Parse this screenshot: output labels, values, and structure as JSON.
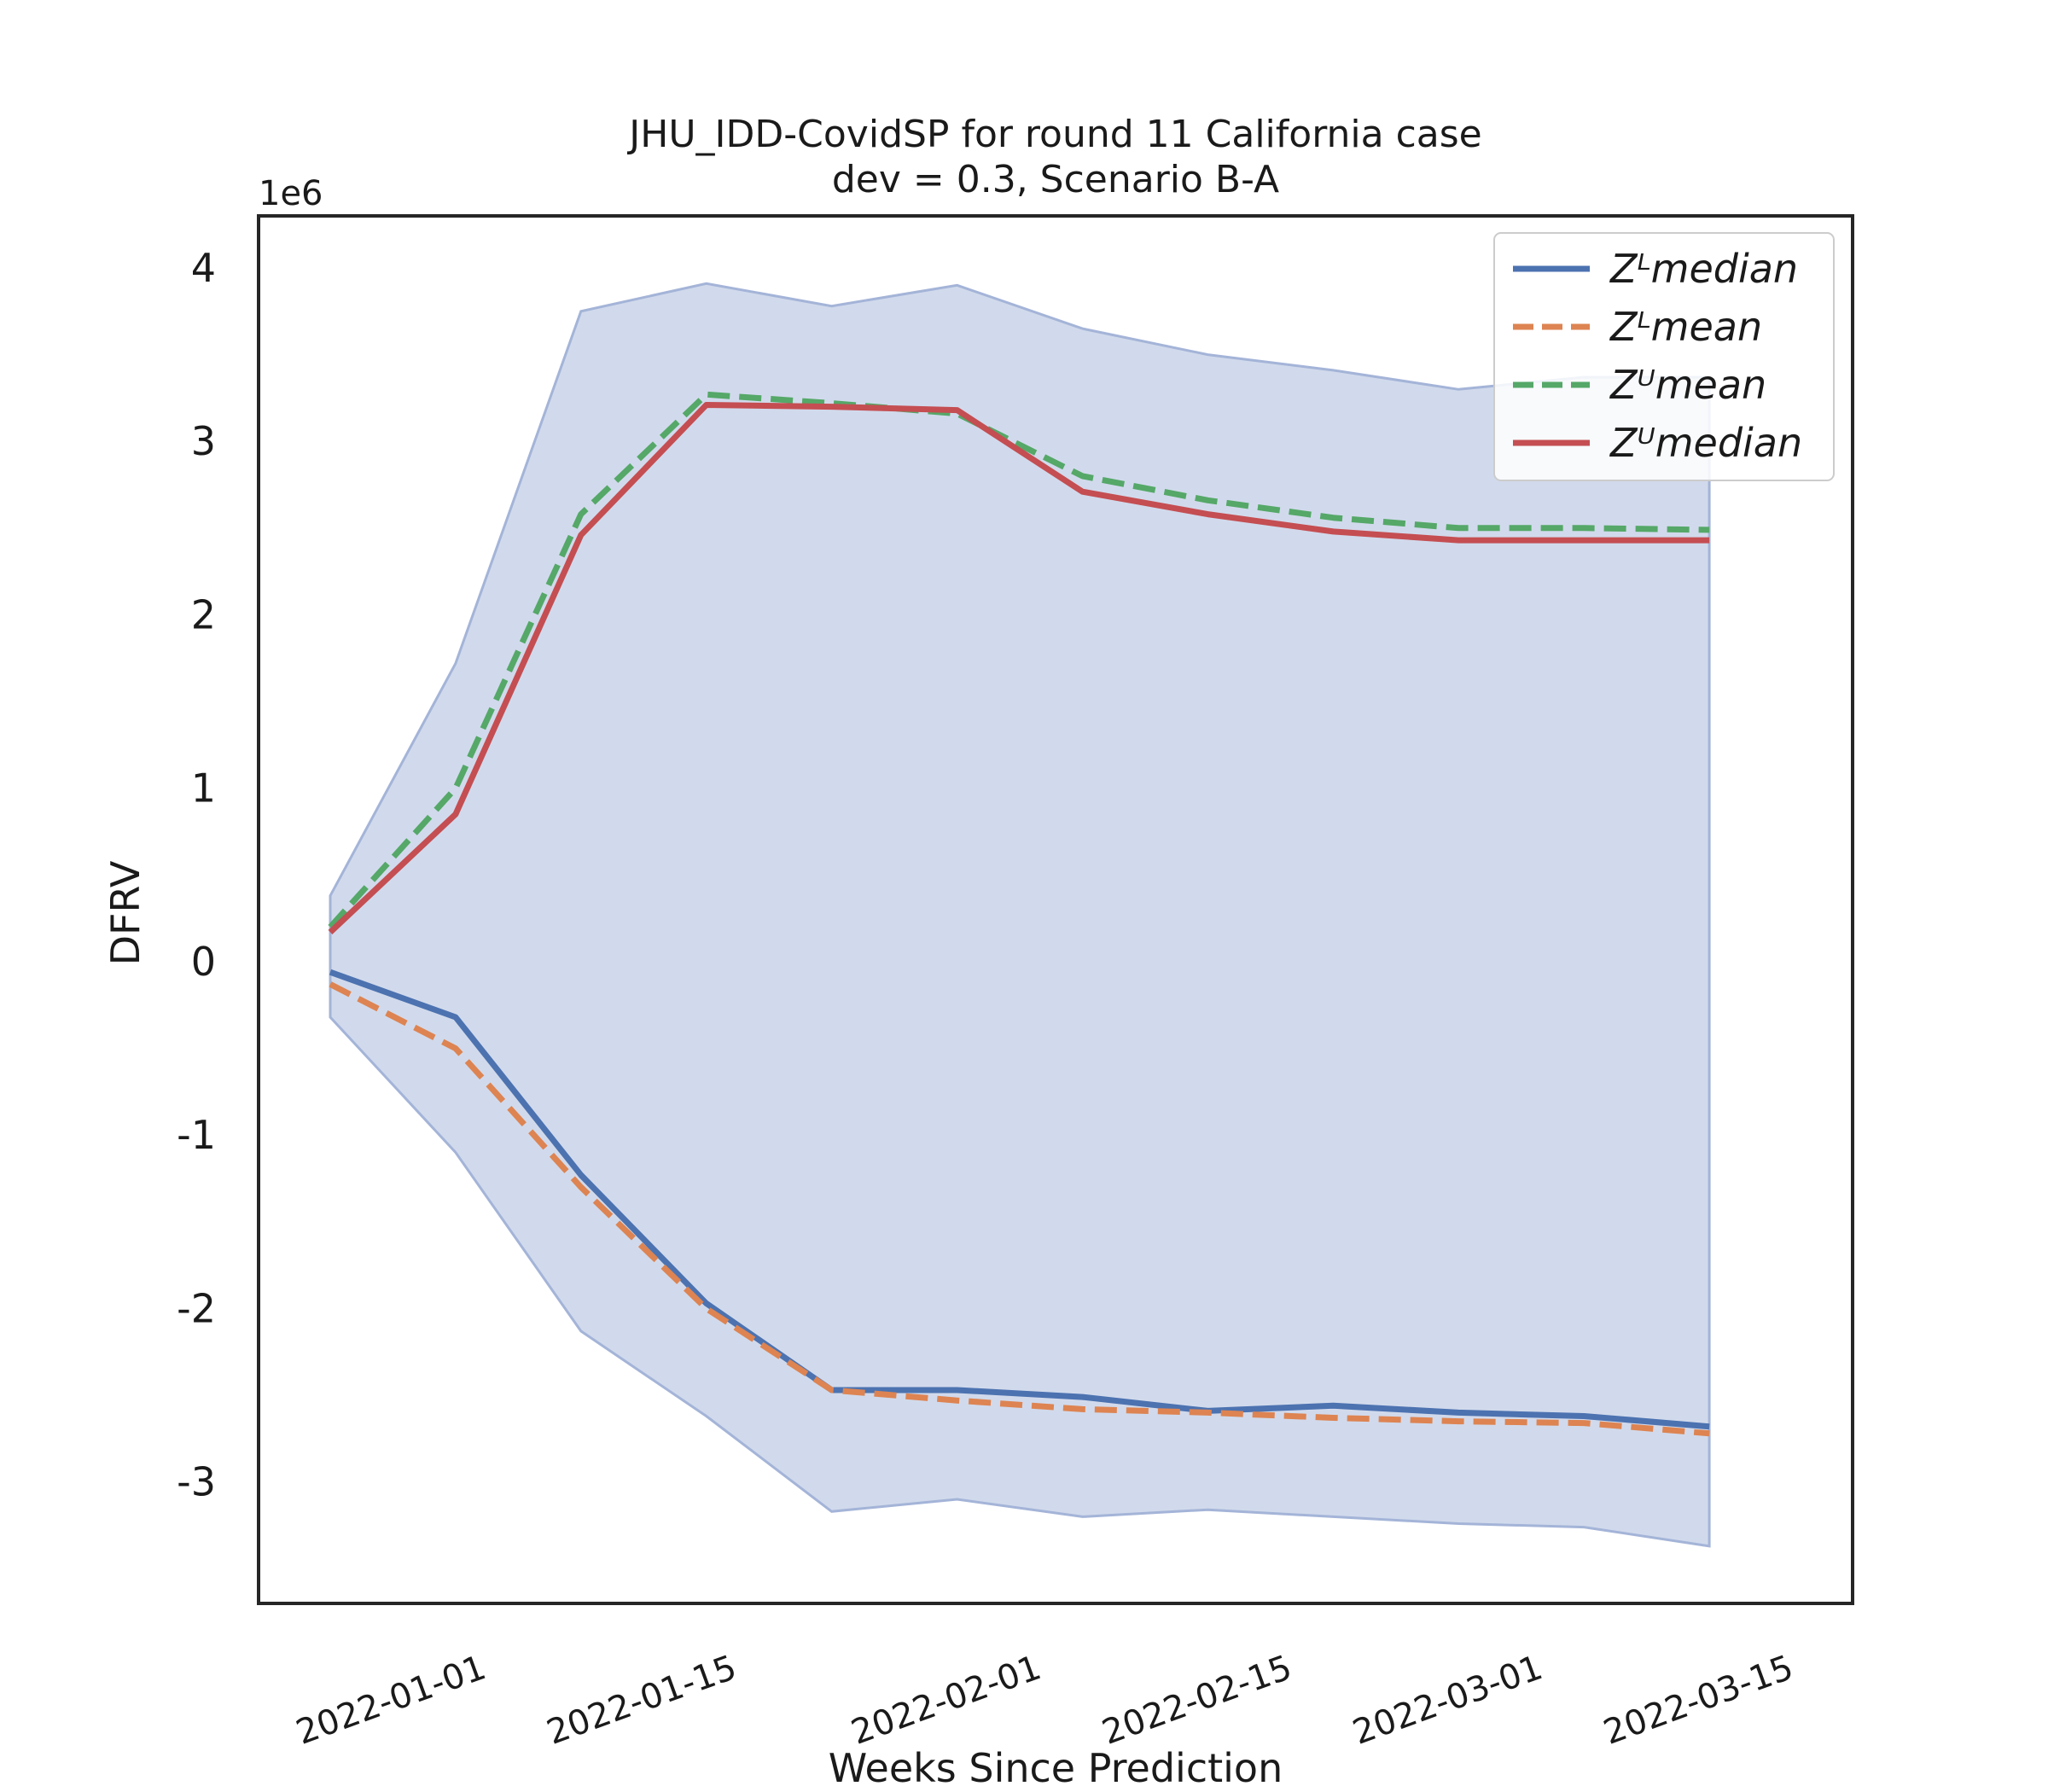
{
  "chart_data": {
    "type": "line",
    "title": "JHU_IDD-CovidSP for round 11 California case",
    "subtitle": "dev = 0.3, Scenario B-A",
    "xlabel": "Weeks Since Prediction",
    "ylabel": "DFRV",
    "y_offset_label": "1e6",
    "y_multiplier": 1000000,
    "xlim": [
      "2021-12-21",
      "2022-03-20"
    ],
    "ylim": [
      -3.7,
      4.3
    ],
    "x_tick_labels": [
      "2022-01-01",
      "2022-01-15",
      "2022-02-01",
      "2022-02-15",
      "2022-03-01",
      "2022-03-15"
    ],
    "y_tick_labels": [
      "-3",
      "-2",
      "-1",
      "0",
      "1",
      "2",
      "3",
      "4"
    ],
    "grid": false,
    "legend_position": "top-right",
    "x": [
      "2021-12-25",
      "2022-01-01",
      "2022-01-08",
      "2022-01-15",
      "2022-01-22",
      "2022-01-29",
      "2022-02-05",
      "2022-02-12",
      "2022-02-19",
      "2022-02-26",
      "2022-03-05",
      "2022-03-12"
    ],
    "band": {
      "upper": [
        0.38,
        1.72,
        3.75,
        3.91,
        3.78,
        3.9,
        3.65,
        3.5,
        3.41,
        3.3,
        3.37,
        3.37
      ],
      "lower": [
        -0.32,
        -1.1,
        -2.13,
        -2.62,
        -3.17,
        -3.1,
        -3.2,
        -3.16,
        -3.2,
        -3.24,
        -3.26,
        -3.37
      ],
      "color": "#b9c6e2"
    },
    "series": [
      {
        "name": "Z^L median",
        "color": "#4c72b0",
        "dash": false,
        "values": [
          -0.06,
          -0.32,
          -1.23,
          -1.97,
          -2.47,
          -2.47,
          -2.51,
          -2.59,
          -2.56,
          -2.6,
          -2.62,
          -2.68
        ]
      },
      {
        "name": "Z^L mean",
        "color": "#dd8452",
        "dash": true,
        "values": [
          -0.13,
          -0.5,
          -1.3,
          -2.0,
          -2.47,
          -2.53,
          -2.58,
          -2.6,
          -2.63,
          -2.65,
          -2.66,
          -2.72
        ]
      },
      {
        "name": "Z^U mean",
        "color": "#55a868",
        "dash": true,
        "values": [
          0.2,
          1.0,
          2.58,
          3.27,
          3.22,
          3.16,
          2.8,
          2.66,
          2.56,
          2.5,
          2.5,
          2.49
        ]
      },
      {
        "name": "Z^U median",
        "color": "#c44e52",
        "dash": false,
        "values": [
          0.17,
          0.85,
          2.46,
          3.21,
          3.2,
          3.18,
          2.71,
          2.58,
          2.48,
          2.43,
          2.43,
          2.43
        ]
      }
    ]
  }
}
